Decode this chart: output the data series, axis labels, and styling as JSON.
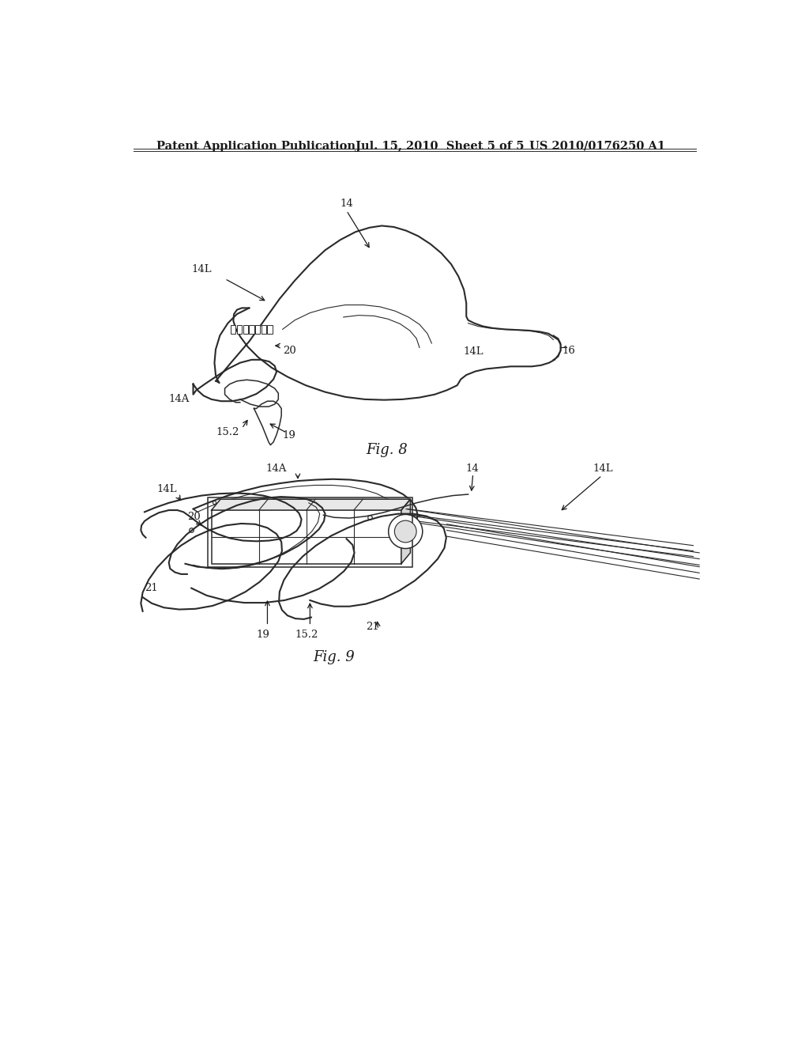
{
  "background_color": "#ffffff",
  "header_left": "Patent Application Publication",
  "header_mid": "Jul. 15, 2010  Sheet 5 of 5",
  "header_right": "US 2010/0176250 A1",
  "fig8_label": "Fig. 8",
  "fig9_label": "Fig. 9",
  "line_color": "#2a2a2a",
  "text_color": "#1a1a1a",
  "header_fontsize": 10.5,
  "label_fontsize": 9.5,
  "fig_label_fontsize": 13
}
